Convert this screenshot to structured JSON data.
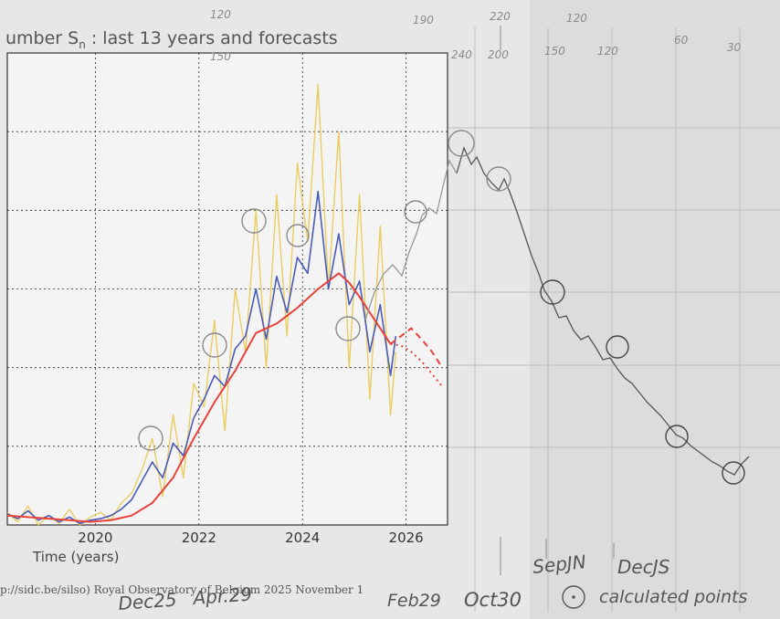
{
  "chart_data": {
    "type": "line",
    "title": "umber S",
    "title_sub": "n",
    "title_rest": " : last 13 years and forecasts",
    "xlabel": "Time (years)",
    "credit": "p://sidc.be/silso)  Royal Observatory of Belgium  2025 November 1",
    "xlim": [
      2018.3,
      2026.8
    ],
    "ylim": [
      0,
      300
    ],
    "xticks": [
      2020,
      2022,
      2024,
      2026
    ],
    "xtick_labels": [
      "2020",
      "2022",
      "2024",
      "2026"
    ],
    "yticks": [
      50,
      100,
      150,
      200,
      250
    ],
    "grid": true,
    "series": [
      {
        "color": "#e8c547",
        "x": [
          2018.3,
          2018.5,
          2018.7,
          2018.9,
          2019.1,
          2019.3,
          2019.5,
          2019.7,
          2019.9,
          2020.1,
          2020.3,
          2020.5,
          2020.7,
          2020.9,
          2021.1,
          2021.3,
          2021.5,
          2021.7,
          2021.9,
          2022.1,
          2022.3,
          2022.5,
          2022.7,
          2022.9,
          2023.1,
          2023.3,
          2023.5,
          2023.7,
          2023.9,
          2024.1,
          2024.3,
          2024.5,
          2024.7,
          2024.9,
          2025.1,
          2025.3,
          2025.5,
          2025.7,
          2025.8
        ],
        "values": [
          8,
          2,
          12,
          0,
          6,
          1,
          10,
          0,
          5,
          8,
          3,
          14,
          20,
          35,
          55,
          18,
          70,
          30,
          90,
          75,
          130,
          60,
          150,
          110,
          200,
          100,
          210,
          120,
          230,
          180,
          280,
          150,
          250,
          100,
          210,
          80,
          190,
          70,
          110
        ]
      },
      {
        "color": "#4a5bb8",
        "x": [
          2018.3,
          2018.5,
          2018.7,
          2018.9,
          2019.1,
          2019.3,
          2019.5,
          2019.7,
          2019.9,
          2020.1,
          2020.3,
          2020.5,
          2020.7,
          2020.9,
          2021.1,
          2021.3,
          2021.5,
          2021.7,
          2021.9,
          2022.1,
          2022.3,
          2022.5,
          2022.7,
          2022.9,
          2023.1,
          2023.3,
          2023.5,
          2023.7,
          2023.9,
          2024.1,
          2024.3,
          2024.5,
          2024.7,
          2024.9,
          2025.1,
          2025.3,
          2025.5,
          2025.7,
          2025.8
        ],
        "values": [
          7,
          4,
          9,
          3,
          6,
          2,
          5,
          1,
          3,
          4,
          6,
          10,
          16,
          28,
          40,
          30,
          52,
          44,
          68,
          80,
          95,
          88,
          112,
          120,
          150,
          118,
          158,
          135,
          170,
          160,
          212,
          150,
          185,
          140,
          155,
          110,
          140,
          95,
          120
        ]
      },
      {
        "color": "#e8423a",
        "x": [
          2018.3,
          2018.7,
          2019.1,
          2019.5,
          2019.9,
          2020.3,
          2020.7,
          2021.1,
          2021.5,
          2021.9,
          2022.3,
          2022.7,
          2022.9,
          2023.1,
          2023.5,
          2023.9,
          2024.3,
          2024.5,
          2024.7,
          2024.9,
          2025.1,
          2025.3,
          2025.5,
          2025.7
        ],
        "values": [
          6,
          5,
          4,
          3,
          2,
          3,
          6,
          14,
          30,
          55,
          78,
          98,
          110,
          122,
          128,
          138,
          150,
          155,
          160,
          154,
          145,
          135,
          125,
          115
        ]
      },
      {
        "color": "#e8423a",
        "dash": "dash",
        "x": [
          2025.7,
          2025.9,
          2026.1,
          2026.3,
          2026.5,
          2026.7
        ],
        "values": [
          115,
          120,
          125,
          118,
          110,
          100
        ]
      },
      {
        "color": "#e8423a",
        "dash": "dot",
        "x": [
          2025.7,
          2025.9,
          2026.1,
          2026.3,
          2026.5,
          2026.7
        ],
        "values": [
          115,
          114,
          110,
          104,
          96,
          88
        ]
      }
    ]
  },
  "handwritten": {
    "top_numbers": [
      "120",
      "190",
      "220",
      "120",
      "60",
      "30"
    ],
    "second_numbers": [
      "150",
      "240",
      "200",
      "150",
      "120"
    ],
    "bottom_labels": [
      "Dec25",
      "Apr.29",
      "Feb29",
      "Oct30",
      "SepJN",
      "DecJS"
    ],
    "legend_text": "calculated points"
  }
}
